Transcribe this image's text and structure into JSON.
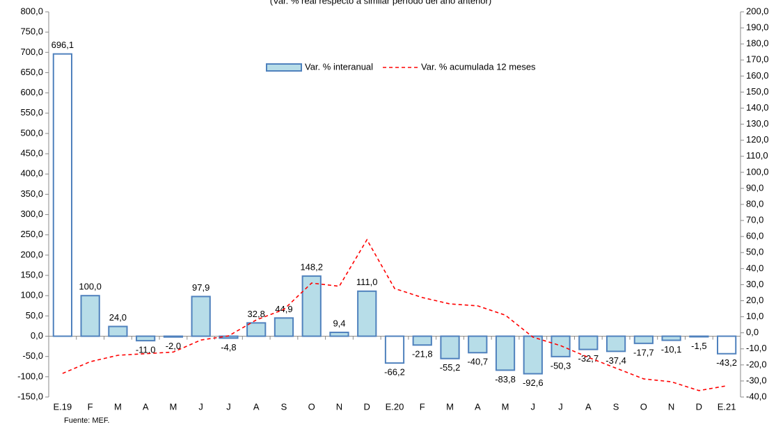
{
  "chart_data": {
    "type": "bar_line",
    "subtitle": "(Var. % real respecto a similar período del año anterior)",
    "source": "Fuente: MEF.",
    "categories": [
      "E.19",
      "F",
      "M",
      "A",
      "M",
      "J",
      "J",
      "A",
      "S",
      "O",
      "N",
      "D",
      "E.20",
      "F",
      "M",
      "A",
      "M",
      "J",
      "J",
      "A",
      "S",
      "O",
      "N",
      "D",
      "E.21"
    ],
    "series": [
      {
        "name": "Var. % interanual",
        "type": "bar",
        "color": "#b7dde8",
        "edge": "#4f81bd",
        "colors": [
          "#ffffff",
          "#b7dde8",
          "#b7dde8",
          "#b7dde8",
          "#b7dde8",
          "#b7dde8",
          "#b7dde8",
          "#b7dde8",
          "#b7dde8",
          "#b7dde8",
          "#b7dde8",
          "#b7dde8",
          "#ffffff",
          "#b7dde8",
          "#b7dde8",
          "#b7dde8",
          "#b7dde8",
          "#b7dde8",
          "#b7dde8",
          "#b7dde8",
          "#b7dde8",
          "#b7dde8",
          "#b7dde8",
          "#b7dde8",
          "#ffffff"
        ],
        "values": [
          696.1,
          100.0,
          24.0,
          -11.0,
          -2.0,
          97.9,
          -4.8,
          32.8,
          44.9,
          148.2,
          9.4,
          111.0,
          -66.2,
          -21.8,
          -55.2,
          -40.7,
          -83.8,
          -92.6,
          -50.3,
          -32.7,
          -37.4,
          -17.7,
          -10.1,
          -1.5,
          -43.2
        ],
        "value_labels": [
          "696,1",
          "100,0",
          "24,0",
          "-11,0",
          "-2,0",
          "97,9",
          "-4,8",
          "32,8",
          "44,9",
          "148,2",
          "9,4",
          "111,0",
          "-66,2",
          "-21,8",
          "-55,2",
          "-40,7",
          "-83,8",
          "-92,6",
          "-50,3",
          "-32,7",
          "-37,4",
          "-17,7",
          "-10,1",
          "-1,5",
          "-43,2"
        ]
      },
      {
        "name": "Var. % acumulada 12 meses",
        "type": "line",
        "color": "#ff0000",
        "dashed": true,
        "axis": "y2",
        "values": [
          -25.3,
          -18,
          -14,
          -13,
          -12,
          -4.5,
          -1.9,
          8,
          14.6,
          31,
          29,
          58,
          27.6,
          22,
          18,
          16.8,
          11,
          -2.7,
          -8,
          -15.3,
          -22,
          -28.7,
          -30.5,
          -36,
          -33
        ]
      }
    ],
    "ylim": [
      -150,
      800
    ],
    "yticks": [
      {
        "value": -150,
        "label": "-150,0"
      },
      {
        "value": -100,
        "label": "-100,0"
      },
      {
        "value": -50,
        "label": "-50,0"
      },
      {
        "value": 0,
        "label": "0,0"
      },
      {
        "value": 50,
        "label": "50,0"
      },
      {
        "value": 100,
        "label": "100,0"
      },
      {
        "value": 150,
        "label": "150,0"
      },
      {
        "value": 200,
        "label": "200,0"
      },
      {
        "value": 250,
        "label": "250,0"
      },
      {
        "value": 300,
        "label": "300,0"
      },
      {
        "value": 350,
        "label": "350,0"
      },
      {
        "value": 400,
        "label": "400,0"
      },
      {
        "value": 450,
        "label": "450,0"
      },
      {
        "value": 500,
        "label": "500,0"
      },
      {
        "value": 550,
        "label": "550,0"
      },
      {
        "value": 600,
        "label": "600,0"
      },
      {
        "value": 650,
        "label": "650,0"
      },
      {
        "value": 700,
        "label": "700,0"
      },
      {
        "value": 750,
        "label": "750,0"
      },
      {
        "value": 800,
        "label": "800,0"
      }
    ],
    "y2lim": [
      -40,
      200
    ],
    "y2ticks": [
      {
        "value": -40,
        "label": "-40,0"
      },
      {
        "value": -30,
        "label": "-30,0"
      },
      {
        "value": -20,
        "label": "-20,0"
      },
      {
        "value": -10,
        "label": "-10,0"
      },
      {
        "value": 0,
        "label": "0,0"
      },
      {
        "value": 10,
        "label": "10,0"
      },
      {
        "value": 20,
        "label": "20,0"
      },
      {
        "value": 30,
        "label": "30,0"
      },
      {
        "value": 40,
        "label": "40,0"
      },
      {
        "value": 50,
        "label": "50,0"
      },
      {
        "value": 60,
        "label": "60,0"
      },
      {
        "value": 70,
        "label": "70,0"
      },
      {
        "value": 80,
        "label": "80,0"
      },
      {
        "value": 90,
        "label": "90,0"
      },
      {
        "value": 100,
        "label": "100,0"
      },
      {
        "value": 110,
        "label": "110,0"
      },
      {
        "value": 120,
        "label": "120,0"
      },
      {
        "value": 130,
        "label": "130,0"
      },
      {
        "value": 140,
        "label": "140,0"
      },
      {
        "value": 150,
        "label": "150,0"
      },
      {
        "value": 160,
        "label": "160,0"
      },
      {
        "value": 170,
        "label": "170,0"
      },
      {
        "value": 180,
        "label": "180,0"
      },
      {
        "value": 190,
        "label": "190,0"
      },
      {
        "value": 200,
        "label": "200,0"
      }
    ],
    "grid": false,
    "legend": "top"
  }
}
